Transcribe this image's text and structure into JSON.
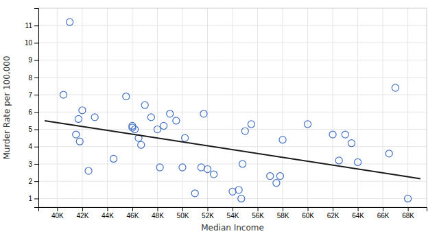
{
  "chart_data": {
    "type": "scatter",
    "xlabel": "Median Income",
    "ylabel": "Murder Rate per 100,000",
    "xlim": [
      38500,
      69500
    ],
    "ylim": [
      0.5,
      12
    ],
    "xticks": [
      {
        "value": 40000,
        "label": "40K"
      },
      {
        "value": 42000,
        "label": "42K"
      },
      {
        "value": 44000,
        "label": "44K"
      },
      {
        "value": 46000,
        "label": "46K"
      },
      {
        "value": 48000,
        "label": "48K"
      },
      {
        "value": 50000,
        "label": "50K"
      },
      {
        "value": 52000,
        "label": "52K"
      },
      {
        "value": 54000,
        "label": "54K"
      },
      {
        "value": 56000,
        "label": "56K"
      },
      {
        "value": 58000,
        "label": "58K"
      },
      {
        "value": 60000,
        "label": "60K"
      },
      {
        "value": 62000,
        "label": "62K"
      },
      {
        "value": 64000,
        "label": "64K"
      },
      {
        "value": 66000,
        "label": "66K"
      },
      {
        "value": 68000,
        "label": "68K"
      }
    ],
    "yticks": [
      1,
      2,
      3,
      4,
      5,
      6,
      7,
      8,
      9,
      10,
      11
    ],
    "grid": true,
    "series": [
      {
        "type": "scatter",
        "marker": "circle",
        "color": "#4472C4",
        "x": [
          40500,
          41000,
          41500,
          41700,
          41800,
          42000,
          42500,
          43000,
          44500,
          45500,
          46000,
          46000,
          46200,
          46500,
          46700,
          47000,
          47500,
          48000,
          48200,
          48500,
          49000,
          49500,
          50000,
          50200,
          51000,
          51500,
          51700,
          52000,
          52500,
          54000,
          54500,
          54700,
          54800,
          55000,
          55500,
          57000,
          57500,
          57800,
          58000,
          60000,
          62000,
          62500,
          63000,
          63500,
          64000,
          66500,
          67000,
          68000
        ],
        "values": [
          7.0,
          11.2,
          4.7,
          5.6,
          4.3,
          6.1,
          2.6,
          5.7,
          3.3,
          6.9,
          5.1,
          5.2,
          5.0,
          4.5,
          4.1,
          6.4,
          5.7,
          5.0,
          2.8,
          5.2,
          5.9,
          5.5,
          2.8,
          4.5,
          1.3,
          2.8,
          5.9,
          2.7,
          2.4,
          1.4,
          1.5,
          1.0,
          3.0,
          4.9,
          5.3,
          2.3,
          1.9,
          2.3,
          4.4,
          5.3,
          4.7,
          3.2,
          4.7,
          4.2,
          3.1,
          3.6,
          7.4,
          1.0
        ]
      },
      {
        "type": "line",
        "color": "#1a1a1a",
        "x": [
          39000,
          69000
        ],
        "values": [
          5.5,
          2.15
        ]
      }
    ]
  }
}
